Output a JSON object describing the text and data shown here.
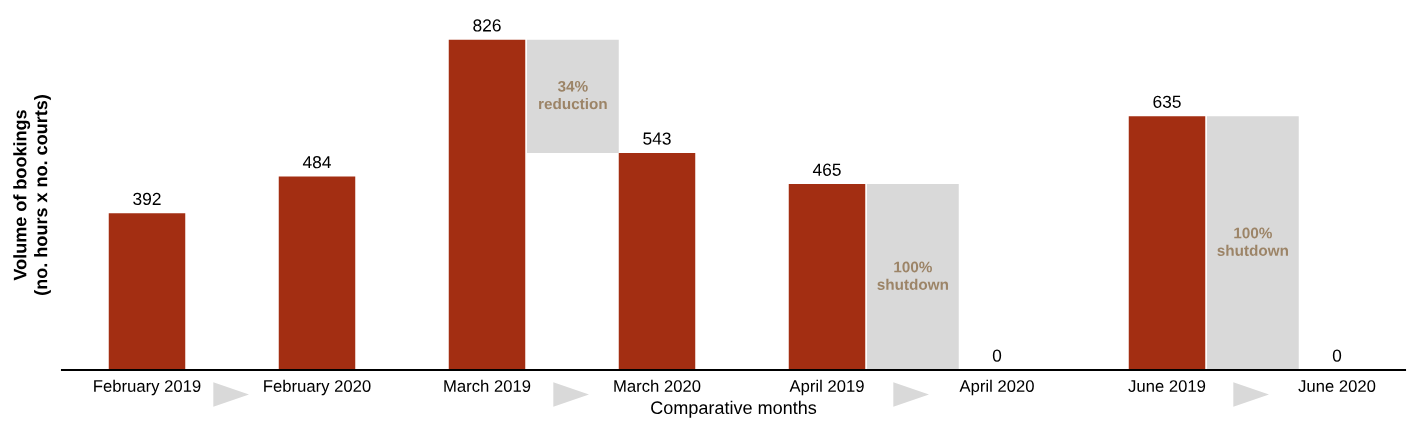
{
  "chart_data": {
    "type": "bar",
    "xlabel": "Comparative months",
    "ylabel": "Volume of bookings\n(no. hours x no. courts)",
    "categories": [
      "February 2019",
      "February 2020",
      "March 2019",
      "March 2020",
      "April 2019",
      "April 2020",
      "June 2019",
      "June 2020"
    ],
    "series": [
      {
        "color": "#a32e12",
        "values": [
          392,
          484,
          826,
          543,
          465,
          0,
          635,
          0
        ],
        "value_labels": [
          "392",
          "484",
          "826",
          "543",
          "465",
          "0",
          "635",
          "0"
        ]
      },
      {
        "color": "#d9d9d9",
        "values": [
          null,
          null,
          null,
          283,
          null,
          465,
          null,
          635
        ]
      }
    ],
    "annotations": [
      "34%\nreduction",
      "100%\nshutdown",
      "100%\nshutdown"
    ],
    "stacked": true,
    "grid": false,
    "legend": false
  }
}
